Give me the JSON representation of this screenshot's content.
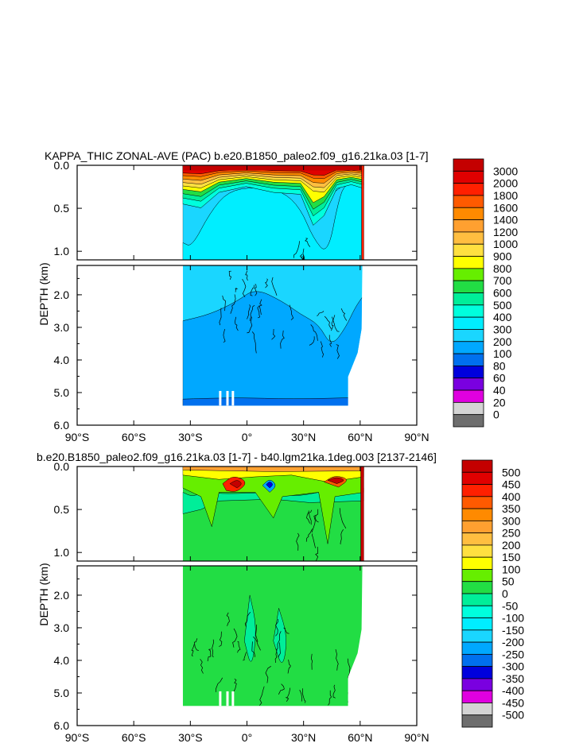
{
  "chart_data": [
    {
      "type": "contour",
      "title": "KAPPA_THIC ZONAL-AVE (PAC) b.e20.B1850_paleo2.f09_g16.21ka.03 [1-7]",
      "xlabel": "",
      "ylabel": "DEPTH (km)",
      "x_tick_labels": [
        "90°S",
        "60°S",
        "30°S",
        "0°",
        "30°N",
        "60°N",
        "90°N"
      ],
      "y_tick_labels_upper": [
        "0.0",
        "0.5",
        "1.0"
      ],
      "y_tick_labels_lower": [
        "2.0",
        "3.0",
        "4.0",
        "5.0",
        "6.0"
      ],
      "xlim": [
        -90,
        90
      ],
      "ylim_upper_km": [
        0.0,
        1.1
      ],
      "ylim_lower_km": [
        1.1,
        6.0
      ],
      "data_extent": {
        "lat_min": -34,
        "lat_max": 62,
        "max_depth_km": 5.4
      },
      "colorbar": {
        "levels": [
          "3000",
          "2000",
          "1800",
          "1600",
          "1400",
          "1200",
          "1000",
          "900",
          "800",
          "700",
          "600",
          "500",
          "400",
          "300",
          "200",
          "100",
          "80",
          "60",
          "40",
          "20",
          "0"
        ],
        "colors": [
          "#c40000",
          "#e00000",
          "#ff2000",
          "#ff5a00",
          "#ff8a00",
          "#ffa030",
          "#ffbe40",
          "#ffe040",
          "#ffff00",
          "#66ee00",
          "#22dd44",
          "#00ee99",
          "#00ffdd",
          "#00eeff",
          "#1ad6ff",
          "#00a8ff",
          "#0070ee",
          "#0000dd",
          "#7a00e0",
          "#e000e0",
          "#d4d4d4",
          "#6e6e6e"
        ]
      }
    },
    {
      "type": "contour",
      "title": "b.e20.B1850_paleo2.f09_g16.21ka.03 [1-7] - b40.lgm21ka.1deg.003 [2137-2146]",
      "xlabel": "",
      "ylabel": "DEPTH (km)",
      "x_tick_labels": [
        "90°S",
        "60°S",
        "30°S",
        "0°",
        "30°N",
        "60°N",
        "90°N"
      ],
      "y_tick_labels_upper": [
        "0.0",
        "0.5",
        "1.0"
      ],
      "y_tick_labels_lower": [
        "2.0",
        "3.0",
        "4.0",
        "5.0",
        "6.0"
      ],
      "xlim": [
        -90,
        90
      ],
      "ylim_upper_km": [
        0.0,
        1.1
      ],
      "ylim_lower_km": [
        1.1,
        6.0
      ],
      "data_extent": {
        "lat_min": -34,
        "lat_max": 62,
        "max_depth_km": 5.4
      },
      "colorbar": {
        "levels": [
          "500",
          "450",
          "400",
          "350",
          "300",
          "250",
          "200",
          "150",
          "100",
          "50",
          "0",
          "-50",
          "-100",
          "-150",
          "-200",
          "-250",
          "-300",
          "-350",
          "-400",
          "-450",
          "-500"
        ],
        "colors": [
          "#c40000",
          "#e00000",
          "#ff2000",
          "#ff5a00",
          "#ff8a00",
          "#ffa030",
          "#ffbe40",
          "#ffe040",
          "#ffff00",
          "#66ee00",
          "#22dd44",
          "#00ee99",
          "#00ffdd",
          "#00eeff",
          "#1ad6ff",
          "#00a8ff",
          "#0070ee",
          "#0000dd",
          "#7a00e0",
          "#e000e0",
          "#d4d4d4",
          "#6e6e6e"
        ]
      }
    }
  ]
}
